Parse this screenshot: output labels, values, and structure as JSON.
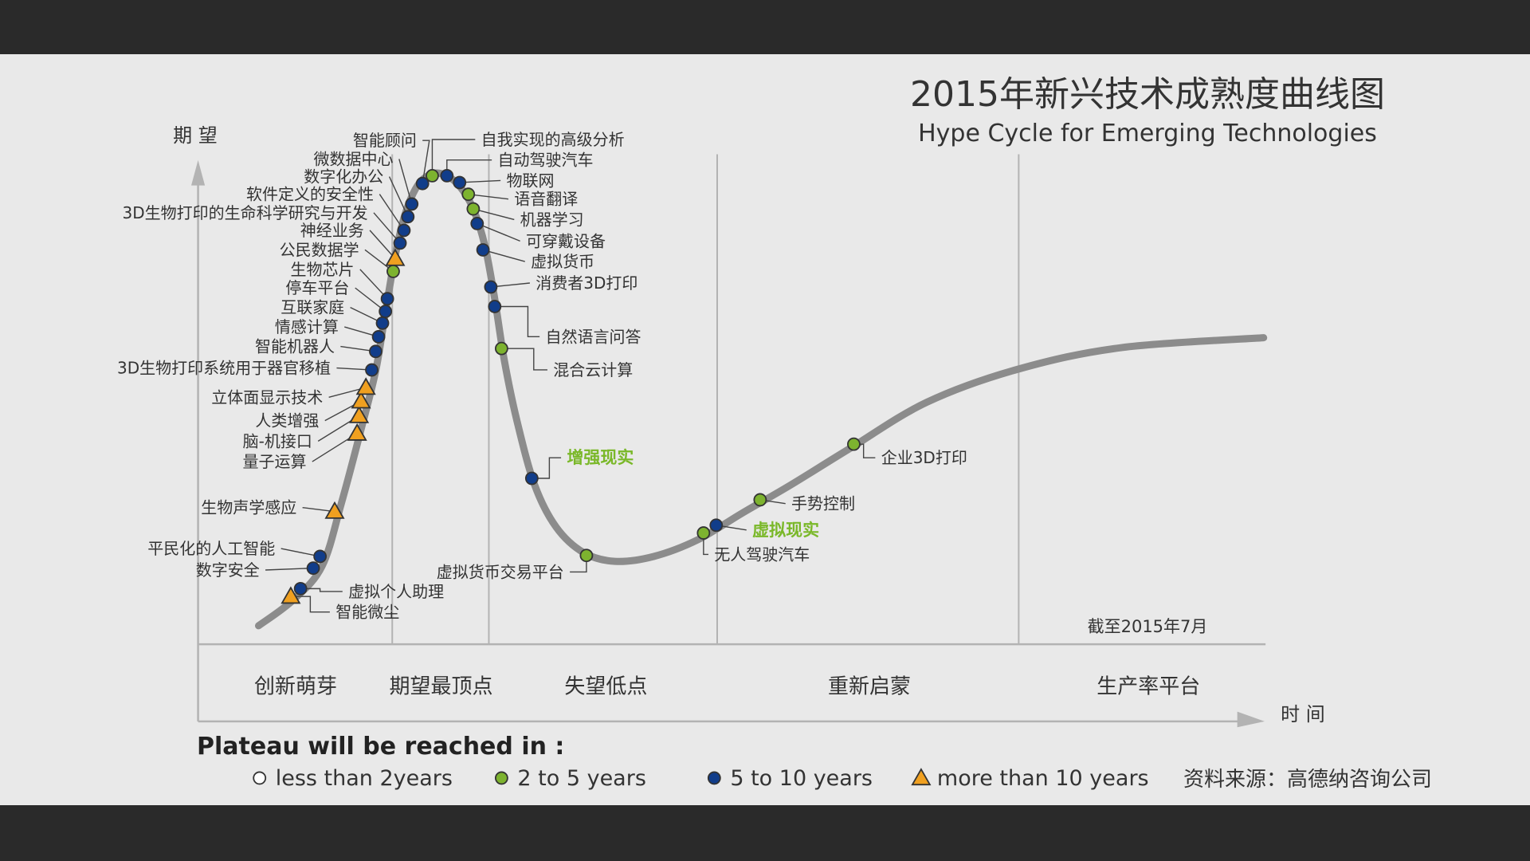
{
  "chart_data": {
    "type": "line",
    "title": "2015年新兴技术成熟度曲线图",
    "subtitle": "Hype Cycle for Emerging Technologies",
    "ylabel": "期 望",
    "xlabel": "时 间",
    "as_of": "截至2015年7月",
    "source": "资料来源：高德纳咨询公司",
    "phases": [
      "创新萌芽",
      "期望最顶点",
      "失望低点",
      "重新启蒙",
      "生产率平台"
    ],
    "legend_title": "Plateau will be reached in :",
    "legend": [
      {
        "key": "lt2",
        "marker": "circle-open",
        "label": "less than 2years"
      },
      {
        "key": "2to5",
        "marker": "circle-green",
        "label": "2 to 5 years"
      },
      {
        "key": "5to10",
        "marker": "circle-blue",
        "label": "5 to 10 years"
      },
      {
        "key": "gt10",
        "marker": "triangle",
        "label": "more than 10 years"
      }
    ],
    "highlighted": [
      "增强现实",
      "虚拟现实"
    ],
    "technologies": [
      {
        "name": "智能微尘",
        "category": "gt10"
      },
      {
        "name": "虚拟个人助理",
        "category": "5to10"
      },
      {
        "name": "数字安全",
        "category": "5to10"
      },
      {
        "name": "平民化的人工智能",
        "category": "5to10"
      },
      {
        "name": "生物声学感应",
        "category": "gt10"
      },
      {
        "name": "量子运算",
        "category": "gt10"
      },
      {
        "name": "脑-机接口",
        "category": "gt10"
      },
      {
        "name": "人类增强",
        "category": "gt10"
      },
      {
        "name": "立体面显示技术",
        "category": "gt10"
      },
      {
        "name": "3D生物打印系统用于器官移植",
        "category": "5to10"
      },
      {
        "name": "智能机器人",
        "category": "5to10"
      },
      {
        "name": "情感计算",
        "category": "5to10"
      },
      {
        "name": "互联家庭",
        "category": "5to10"
      },
      {
        "name": "停车平台",
        "category": "5to10"
      },
      {
        "name": "生物芯片",
        "category": "5to10"
      },
      {
        "name": "公民数据学",
        "category": "2to5"
      },
      {
        "name": "神经业务",
        "category": "gt10"
      },
      {
        "name": "3D生物打印的生命科学研究与开发",
        "category": "5to10"
      },
      {
        "name": "软件定义的安全性",
        "category": "5to10"
      },
      {
        "name": "数字化办公",
        "category": "5to10"
      },
      {
        "name": "微数据中心",
        "category": "5to10"
      },
      {
        "name": "智能顾问",
        "category": "5to10"
      },
      {
        "name": "自我实现的高级分析",
        "category": "2to5"
      },
      {
        "name": "自动驾驶汽车",
        "category": "5to10"
      },
      {
        "name": "物联网",
        "category": "5to10"
      },
      {
        "name": "语音翻译",
        "category": "2to5"
      },
      {
        "name": "机器学习",
        "category": "2to5"
      },
      {
        "name": "可穿戴设备",
        "category": "5to10"
      },
      {
        "name": "虚拟货币",
        "category": "5to10"
      },
      {
        "name": "消费者3D打印",
        "category": "5to10"
      },
      {
        "name": "自然语言问答",
        "category": "5to10"
      },
      {
        "name": "混合云计算",
        "category": "2to5"
      },
      {
        "name": "增强现实",
        "category": "5to10"
      },
      {
        "name": "虚拟货币交易平台",
        "category": "2to5"
      },
      {
        "name": "无人驾驶汽车",
        "category": "2to5"
      },
      {
        "name": "虚拟现实",
        "category": "5to10"
      },
      {
        "name": "手势控制",
        "category": "2to5"
      },
      {
        "name": "企业3D打印",
        "category": "2to5"
      }
    ]
  },
  "colors": {
    "panel": "#e9e9e9",
    "frame": "#2a2a2a",
    "curve": "#8c8c8c",
    "axis": "#b3b3b3",
    "text": "#333333",
    "green": "#7db32f",
    "blue": "#113d8a",
    "orange": "#f0a020",
    "highlight": "#7ab829"
  }
}
